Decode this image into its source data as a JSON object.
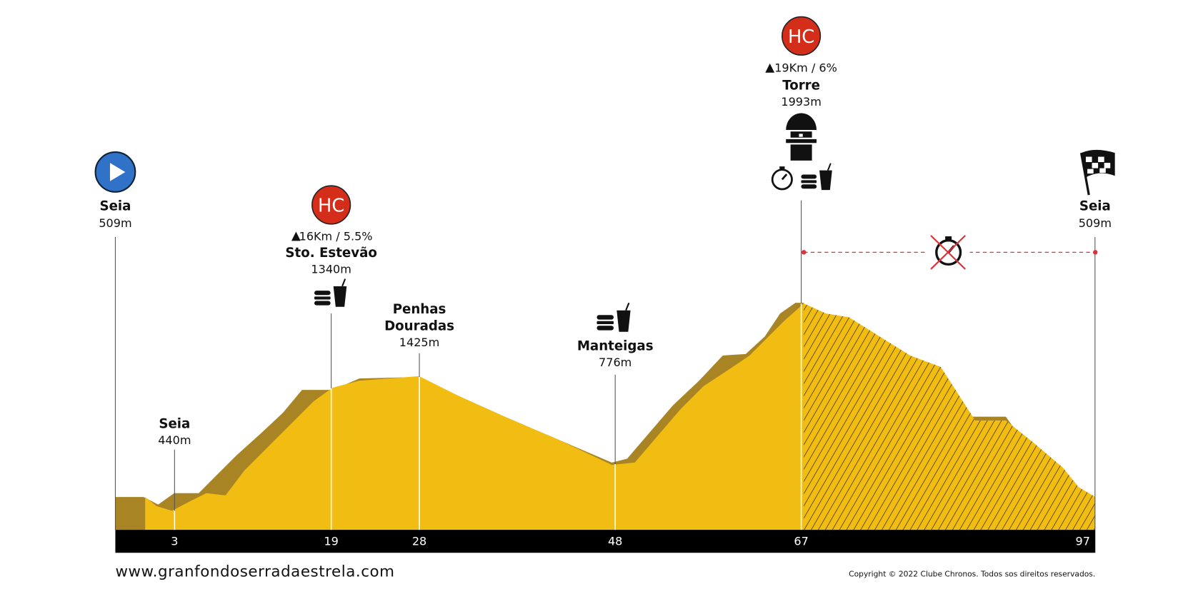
{
  "start": {
    "name": "Seia",
    "altitude": "509m"
  },
  "waypoints": [
    {
      "km": 3,
      "name": "Seia",
      "altitude": "440m"
    },
    {
      "km": 19,
      "badge": "HC",
      "climb": "16Km / 5.5%",
      "name": "Sto. Estevão",
      "altitude": "1340m"
    },
    {
      "km": 28,
      "name": [
        "Penhas",
        "Douradas"
      ],
      "altitude": "1425m"
    },
    {
      "km": 48,
      "name": "Manteigas",
      "altitude": "776m"
    },
    {
      "km": 67,
      "badge": "HC",
      "climb": "19Km / 6%",
      "name": "Torre",
      "altitude": "1993m"
    },
    {
      "km": 97,
      "name": "Seia",
      "altitude": "509m"
    }
  ],
  "footer": {
    "website": "www.granfondoserradaestrela.com",
    "copyright": "Copyright © 2022 Clube Chronos. Todos sos direitos reservados."
  }
}
